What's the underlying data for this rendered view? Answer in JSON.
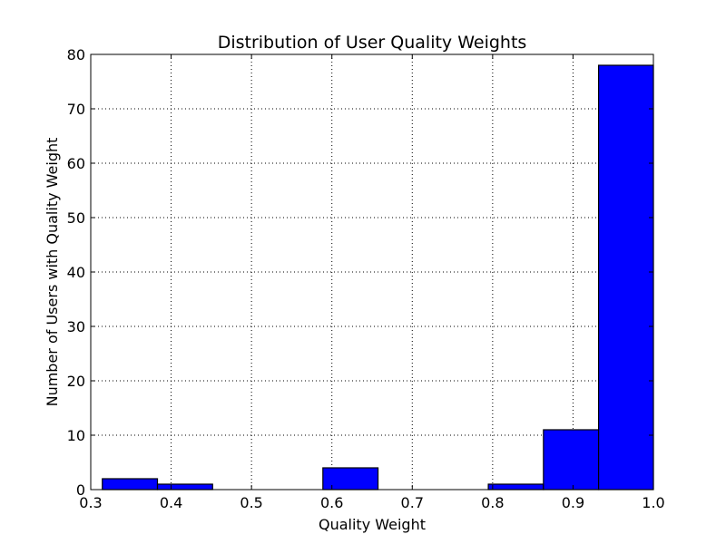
{
  "chart_data": {
    "type": "bar",
    "title": "Distribution of User Quality Weights",
    "xlabel": "Quality Weight",
    "ylabel": "Number of Users with Quality Weight",
    "xlim": [
      0.3,
      1.0
    ],
    "ylim": [
      0,
      80
    ],
    "x_ticks": [
      "0.3",
      "0.4",
      "0.5",
      "0.6",
      "0.7",
      "0.8",
      "0.9",
      "1.0"
    ],
    "y_ticks": [
      "0",
      "10",
      "20",
      "30",
      "40",
      "50",
      "60",
      "70",
      "80"
    ],
    "grid": true,
    "bar_color": "#0000ff",
    "bins": [
      {
        "x0": 0.3144,
        "x1": 0.383,
        "value": 2
      },
      {
        "x0": 0.383,
        "x1": 0.4516,
        "value": 1
      },
      {
        "x0": 0.4516,
        "x1": 0.5202,
        "value": 0
      },
      {
        "x0": 0.5202,
        "x1": 0.5888,
        "value": 0
      },
      {
        "x0": 0.5888,
        "x1": 0.6574,
        "value": 4
      },
      {
        "x0": 0.6574,
        "x1": 0.726,
        "value": 0
      },
      {
        "x0": 0.726,
        "x1": 0.7946,
        "value": 0
      },
      {
        "x0": 0.7946,
        "x1": 0.8632,
        "value": 1
      },
      {
        "x0": 0.8632,
        "x1": 0.9318,
        "value": 11
      },
      {
        "x0": 0.9318,
        "x1": 1.0,
        "value": 78
      }
    ]
  }
}
